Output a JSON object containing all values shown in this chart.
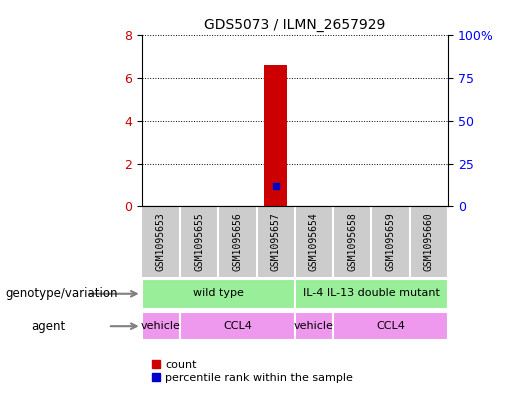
{
  "title": "GDS5073 / ILMN_2657929",
  "samples": [
    "GSM1095653",
    "GSM1095655",
    "GSM1095656",
    "GSM1095657",
    "GSM1095654",
    "GSM1095658",
    "GSM1095659",
    "GSM1095660"
  ],
  "bar_values": [
    0,
    0,
    0,
    6.6,
    0,
    0,
    0,
    0
  ],
  "percentile_values": [
    0,
    0,
    0,
    12,
    0,
    0,
    0,
    0
  ],
  "bar_color": "#cc0000",
  "percentile_color": "#0000cc",
  "ylim_left": [
    0,
    8
  ],
  "ylim_right": [
    0,
    100
  ],
  "yticks_left": [
    0,
    2,
    4,
    6,
    8
  ],
  "yticks_right": [
    0,
    25,
    50,
    75,
    100
  ],
  "ytick_labels_right": [
    "0",
    "25",
    "50",
    "75",
    "100%"
  ],
  "sample_bg": "#cccccc",
  "genotype_groups": [
    {
      "label": "wild type",
      "start": 0,
      "end": 4,
      "color": "#99ee99"
    },
    {
      "label": "IL-4 IL-13 double mutant",
      "start": 4,
      "end": 8,
      "color": "#99ee99"
    }
  ],
  "agent_groups": [
    {
      "label": "vehicle",
      "start": 0,
      "end": 1,
      "color": "#ee99ee"
    },
    {
      "label": "CCL4",
      "start": 1,
      "end": 4,
      "color": "#ee99ee"
    },
    {
      "label": "vehicle",
      "start": 4,
      "end": 5,
      "color": "#ee99ee"
    },
    {
      "label": "CCL4",
      "start": 5,
      "end": 8,
      "color": "#ee99ee"
    }
  ],
  "genotype_label": "genotype/variation",
  "agent_label": "agent",
  "legend_count_label": "count",
  "legend_percentile_label": "percentile rank within the sample",
  "bar_width": 0.6,
  "n_samples": 8
}
